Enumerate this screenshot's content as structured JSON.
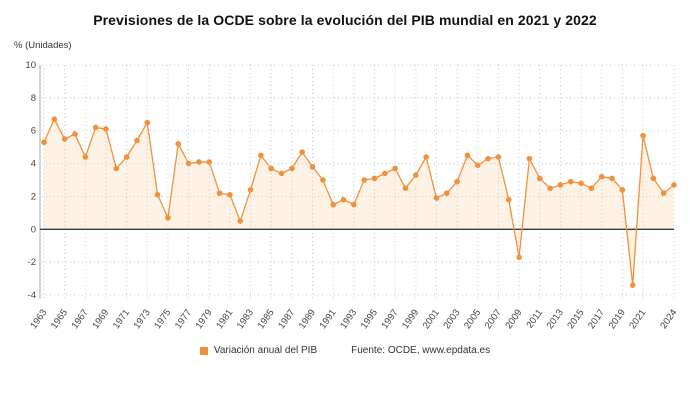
{
  "page": {
    "title": "Previsiones de la OCDE sobre la evolución del PIB mundial en 2021 y 2022",
    "y_axis_unit_label": "% (Unidades)"
  },
  "legend": {
    "series_label": "Variación anual del PIB",
    "source_prefix": "Fuente: OCDE, ",
    "source_link": "www.epdata.es"
  },
  "colors": {
    "accent": "#ef9240",
    "area_fill": "#fdf2e4",
    "grid": "#c8c8c8",
    "zero_line": "#3a3a3a",
    "axis": "#aaaaaa",
    "tick_text": "#444444"
  },
  "chart_data": {
    "type": "line",
    "title": "Previsiones de la OCDE sobre la evolución del PIB mundial en 2021 y 2022",
    "xlabel": "",
    "ylabel": "% (Unidades)",
    "ylim": [
      -4,
      10
    ],
    "y_ticks": [
      10,
      8,
      6,
      4,
      2,
      0,
      -2,
      -4
    ],
    "grid": true,
    "legend_position": "bottom",
    "marker": "circle",
    "area_fill_to_zero": true,
    "x_tick_labels": [
      "1963",
      "1965",
      "1967",
      "1969",
      "1971",
      "1973",
      "1975",
      "1977",
      "1979",
      "1981",
      "1983",
      "1985",
      "1987",
      "1989",
      "1991",
      "1993",
      "1995",
      "1997",
      "1999",
      "2001",
      "2003",
      "2005",
      "2007",
      "2009",
      "2011",
      "2013",
      "2015",
      "2017",
      "2019",
      "2021",
      "2024"
    ],
    "categories": [
      1963,
      1964,
      1965,
      1966,
      1967,
      1968,
      1969,
      1970,
      1971,
      1972,
      1973,
      1974,
      1975,
      1976,
      1977,
      1978,
      1979,
      1980,
      1981,
      1982,
      1983,
      1984,
      1985,
      1986,
      1987,
      1988,
      1989,
      1990,
      1991,
      1992,
      1993,
      1994,
      1995,
      1996,
      1997,
      1998,
      1999,
      2000,
      2001,
      2002,
      2003,
      2004,
      2005,
      2006,
      2007,
      2008,
      2009,
      2010,
      2011,
      2012,
      2013,
      2014,
      2015,
      2016,
      2017,
      2018,
      2019,
      2020,
      2021,
      2022,
      2023,
      2024
    ],
    "series": [
      {
        "name": "Variación anual del PIB",
        "color": "#ef9240",
        "values": [
          5.3,
          6.7,
          5.5,
          5.8,
          4.4,
          6.2,
          6.1,
          3.7,
          4.4,
          5.4,
          6.5,
          2.1,
          0.7,
          5.2,
          4.0,
          4.1,
          4.1,
          2.2,
          2.1,
          0.5,
          2.4,
          4.5,
          3.7,
          3.4,
          3.7,
          4.7,
          3.8,
          3.0,
          1.5,
          1.8,
          1.5,
          3.0,
          3.1,
          3.4,
          3.7,
          2.5,
          3.3,
          4.4,
          1.9,
          2.2,
          2.9,
          4.5,
          3.9,
          4.3,
          4.4,
          1.8,
          -1.7,
          4.3,
          3.1,
          2.5,
          2.7,
          2.9,
          2.8,
          2.5,
          3.2,
          3.1,
          2.4,
          -3.4,
          5.7,
          3.1,
          2.2,
          2.7
        ]
      }
    ]
  }
}
